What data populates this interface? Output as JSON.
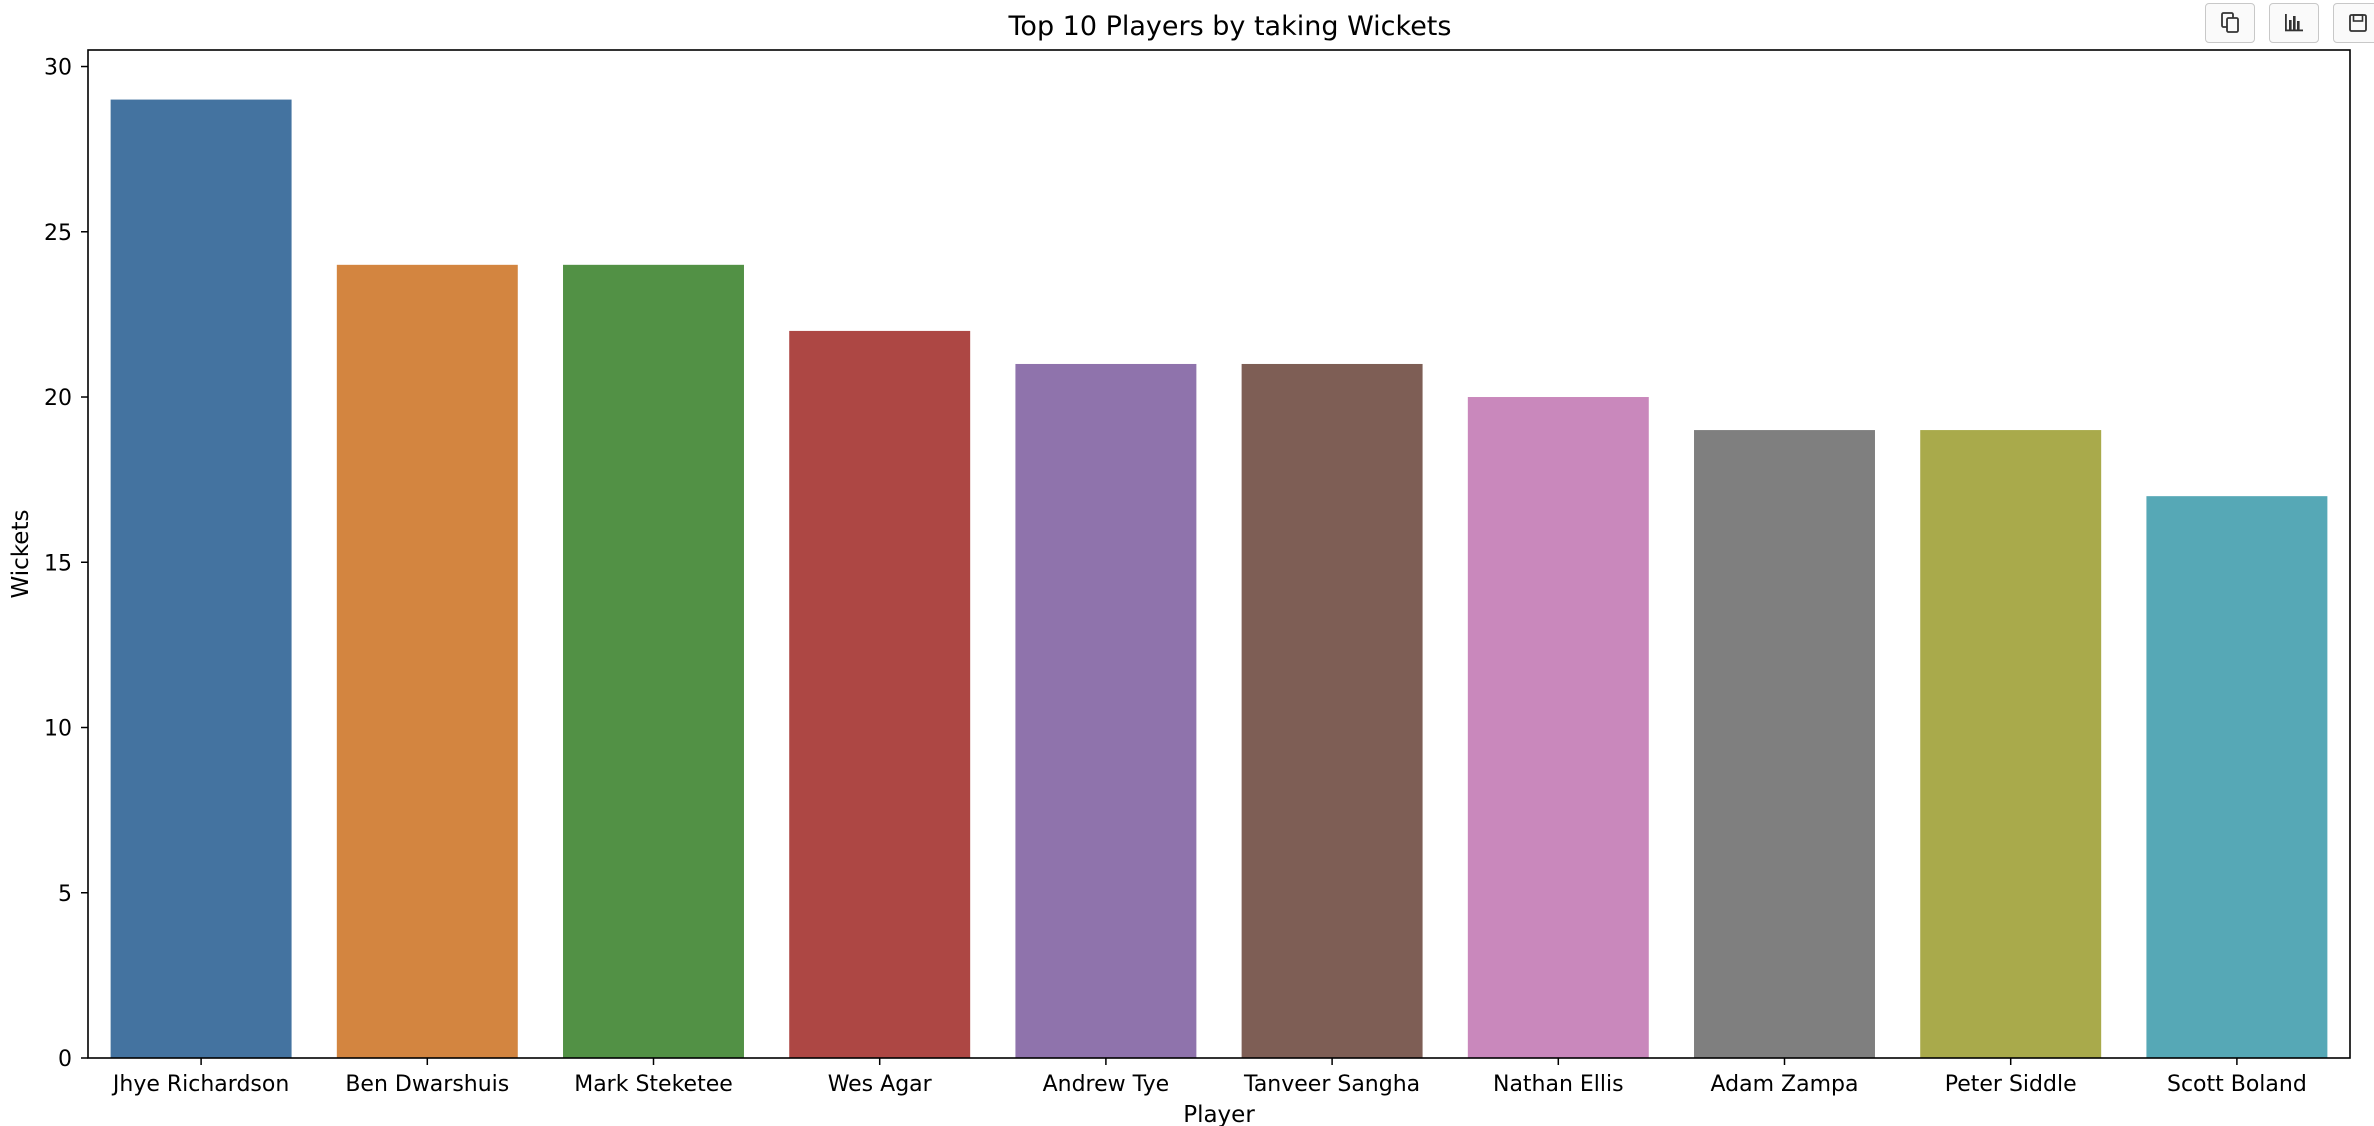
{
  "toolbar": {
    "buttons": [
      {
        "name": "copy-icon"
      },
      {
        "name": "bar-chart-icon"
      },
      {
        "name": "save-icon"
      }
    ]
  },
  "chart_data": {
    "type": "bar",
    "title": "Top 10 Players by taking Wickets",
    "xlabel": "Player",
    "ylabel": "Wickets",
    "categories": [
      "Jhye Richardson",
      "Ben Dwarshuis",
      "Mark Steketee",
      "Wes Agar",
      "Andrew Tye",
      "Tanveer Sangha",
      "Nathan Ellis",
      "Adam Zampa",
      "Peter Siddle",
      "Scott Boland"
    ],
    "values": [
      29,
      24,
      24,
      22,
      21,
      21,
      20,
      19,
      19,
      17
    ],
    "colors": [
      "#4473a0",
      "#d38540",
      "#529145",
      "#ad4744",
      "#8f73ac",
      "#7e5e55",
      "#c988bc",
      "#7f7f7f",
      "#a9aa4b",
      "#56a8b6"
    ],
    "ylim": [
      0,
      30.5
    ],
    "yticks": [
      0,
      5,
      10,
      15,
      20,
      25,
      30
    ],
    "grid": false,
    "legend": "none"
  }
}
